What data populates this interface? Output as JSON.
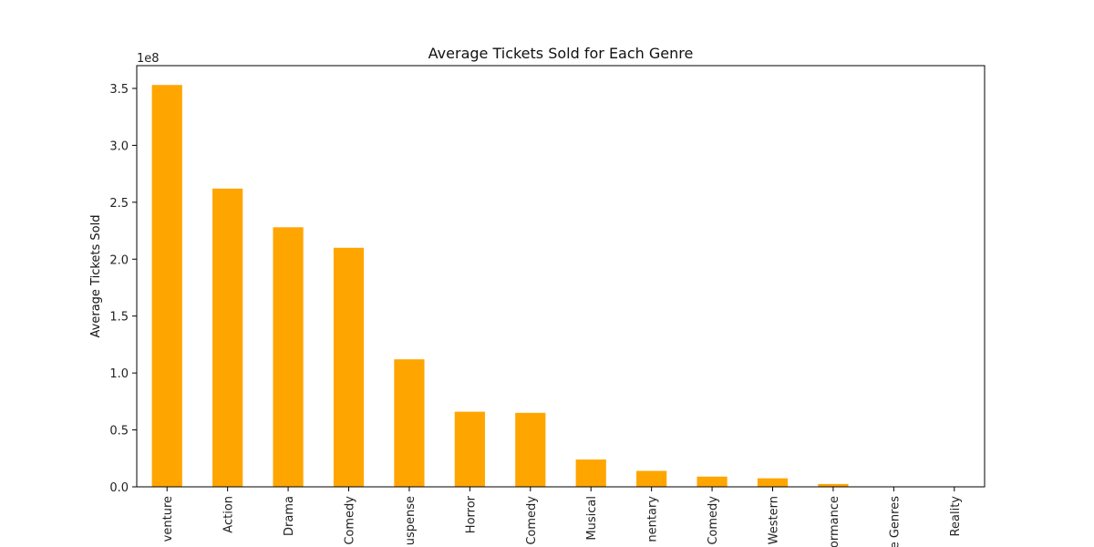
{
  "chart_data": {
    "type": "bar",
    "title": "Average Tickets Sold for Each Genre",
    "xlabel": "",
    "ylabel": "Average Tickets Sold",
    "offset_label": "1e8",
    "categories": [
      "Adventure",
      "Action",
      "Drama",
      "Comedy",
      "Thriller/Suspense",
      "Horror",
      "Romantic Comedy",
      "Musical",
      "Documentary",
      "Black Comedy",
      "Western",
      "Concert/Performance",
      "Multiple Genres",
      "Reality"
    ],
    "category_labels_shown": [
      "venture",
      "Action",
      "Drama",
      "Comedy",
      "uspense",
      "Horror",
      "Comedy",
      "Musical",
      "nentary",
      "Comedy",
      "Western",
      "ormance",
      "e Genres",
      "Reality"
    ],
    "values": [
      353000000,
      262000000,
      228000000,
      210000000,
      112000000,
      66000000,
      65000000,
      24000000,
      14000000,
      9000000,
      7500000,
      2500000,
      0,
      0
    ],
    "ylim": [
      0,
      370000000
    ],
    "yticks": [
      0,
      50000000,
      100000000,
      150000000,
      200000000,
      250000000,
      300000000,
      350000000
    ],
    "ytick_labels": [
      "0.0",
      "0.5",
      "1.0",
      "1.5",
      "2.0",
      "2.5",
      "3.0",
      "3.5"
    ],
    "bar_color": "#ffa500",
    "grid": false,
    "legend": "none"
  }
}
